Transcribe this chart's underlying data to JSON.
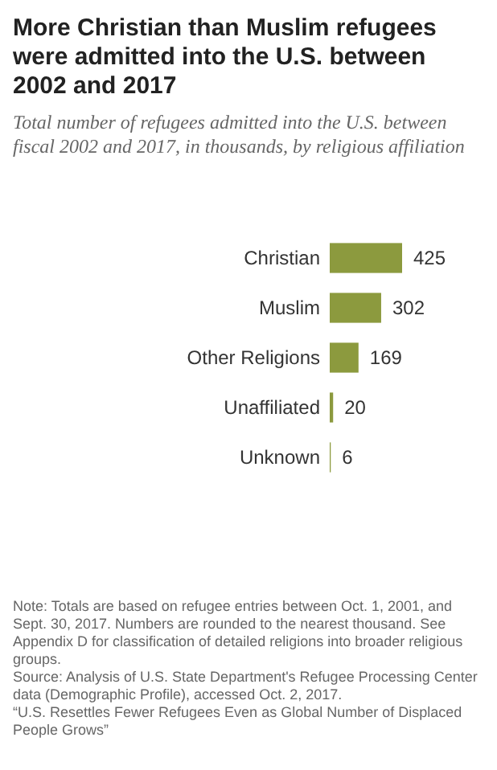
{
  "chart_data": {
    "type": "bar",
    "orientation": "horizontal",
    "title": "More Christian than Muslim refugees were admitted into the U.S. between 2002 and 2017",
    "subtitle": "Total number of refugees admitted into the U.S. between fiscal 2002 and 2017, in thousands, by religious affiliation",
    "categories": [
      "Christian",
      "Muslim",
      "Other Religions",
      "Unaffiliated",
      "Unknown"
    ],
    "values": [
      425,
      302,
      169,
      20,
      6
    ],
    "color": "#8c9a3e",
    "data_labels": true,
    "annotations": [
      "Note: Totals are based on refugee entries between Oct. 1, 2001, and Sept. 30, 2017. Numbers are rounded to the nearest thousand. See Appendix D for classification of detailed religions into broader religious groups.",
      "Source: Analysis of U.S. State Department's Refugee Processing Center data (Demographic Profile), accessed Oct. 2, 2017.",
      "“U.S. Resettles Fewer Refugees Even as Global Number of Displaced People Grows”"
    ]
  }
}
